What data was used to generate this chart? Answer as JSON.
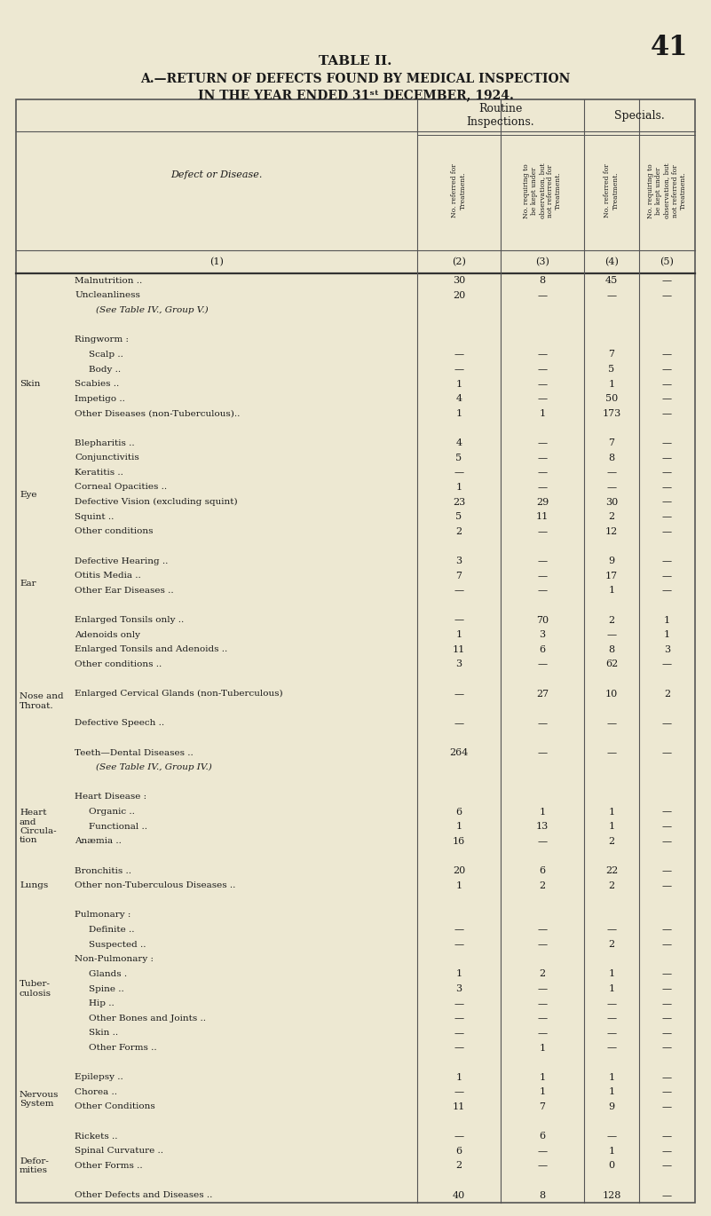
{
  "page_number": "41",
  "title1": "TABLE II.",
  "title2": "A.—RETURN OF DEFECTS FOUND BY MEDICAL INSPECTION",
  "title3": "IN THE YEAR ENDED 31ˢᵗ DECEMBER, 1924.",
  "bg_color": "#ede8d2",
  "col_header_top_left": "Routine\nInspections.",
  "col_header_top_right": "Specials.",
  "col_headers": [
    "No. referred for\nTreatment.",
    "No. requiring to\nbe kept under\nobservation, but\nnot referred for\nTreatment.",
    "No. referred for\nTreatment.",
    "No. requiring to\nbe kept under\nobservation, but\nnot referred for\nTreatment."
  ],
  "col_numbers": [
    "(2)",
    "(3)",
    "(4)",
    "(5)"
  ],
  "defect_label": "Defect or Disease.",
  "col1_num": "(1)",
  "rows": [
    {
      "cat": "",
      "label": "Malnutrition ..",
      "c2": "30",
      "c3": "8",
      "c4": "45",
      "c5": "—"
    },
    {
      "cat": "",
      "label": "Uncleanliness",
      "c2": "20",
      "c3": "—",
      "c4": "—",
      "c5": "—"
    },
    {
      "cat": "",
      "label": "(See Table IV., Group V.)",
      "c2": "",
      "c3": "",
      "c4": "",
      "c5": "",
      "it": true,
      "ind": 2
    },
    {
      "cat": "",
      "label": "",
      "c2": "",
      "c3": "",
      "c4": "",
      "c5": "",
      "gap": true
    },
    {
      "cat": "Skin",
      "label": "Ringworm :",
      "c2": "",
      "c3": "",
      "c4": "",
      "c5": ""
    },
    {
      "cat": "",
      "label": "Scalp ..",
      "c2": "—",
      "c3": "—",
      "c4": "7",
      "c5": "—",
      "ind": 1
    },
    {
      "cat": "",
      "label": "Body ..",
      "c2": "—",
      "c3": "—",
      "c4": "5",
      "c5": "—",
      "ind": 1
    },
    {
      "cat": "",
      "label": "Scabies ..",
      "c2": "1",
      "c3": "—",
      "c4": "1",
      "c5": "—"
    },
    {
      "cat": "",
      "label": "Impetigo ..",
      "c2": "4",
      "c3": "—",
      "c4": "50",
      "c5": "—"
    },
    {
      "cat": "",
      "label": "Other Diseases (non-Tuberculous)..",
      "c2": "1",
      "c3": "1",
      "c4": "173",
      "c5": "—"
    },
    {
      "cat": "",
      "label": "",
      "c2": "",
      "c3": "",
      "c4": "",
      "c5": "",
      "gap": true
    },
    {
      "cat": "Eye",
      "label": "Blepharitis ..",
      "c2": "4",
      "c3": "—",
      "c4": "7",
      "c5": "—"
    },
    {
      "cat": "",
      "label": "Conjunctivitis",
      "c2": "5",
      "c3": "—",
      "c4": "8",
      "c5": "—"
    },
    {
      "cat": "",
      "label": "Keratitis ..",
      "c2": "—",
      "c3": "—",
      "c4": "—",
      "c5": "—"
    },
    {
      "cat": "",
      "label": "Corneal Opacities ..",
      "c2": "1",
      "c3": "—",
      "c4": "—",
      "c5": "—"
    },
    {
      "cat": "",
      "label": "Defective Vision (excluding squint)",
      "c2": "23",
      "c3": "29",
      "c4": "30",
      "c5": "—"
    },
    {
      "cat": "",
      "label": "Squint ..",
      "c2": "5",
      "c3": "11",
      "c4": "2",
      "c5": "—"
    },
    {
      "cat": "",
      "label": "Other conditions",
      "c2": "2",
      "c3": "—",
      "c4": "12",
      "c5": "—"
    },
    {
      "cat": "",
      "label": "",
      "c2": "",
      "c3": "",
      "c4": "",
      "c5": "",
      "gap": true
    },
    {
      "cat": "Ear",
      "label": "Defective Hearing ..",
      "c2": "3",
      "c3": "—",
      "c4": "9",
      "c5": "—"
    },
    {
      "cat": "",
      "label": "Otitis Media ..",
      "c2": "7",
      "c3": "—",
      "c4": "17",
      "c5": "—"
    },
    {
      "cat": "",
      "label": "Other Ear Diseases ..",
      "c2": "—",
      "c3": "—",
      "c4": "1",
      "c5": "—"
    },
    {
      "cat": "",
      "label": "",
      "c2": "",
      "c3": "",
      "c4": "",
      "c5": "",
      "gap": true
    },
    {
      "cat": "Nose and\nThroat.",
      "label": "Enlarged Tonsils only ..",
      "c2": "—",
      "c3": "70",
      "c4": "2",
      "c5": "1"
    },
    {
      "cat": "",
      "label": "Adenoids only",
      "c2": "1",
      "c3": "3",
      "c4": "—",
      "c5": "1"
    },
    {
      "cat": "",
      "label": "Enlarged Tonsils and Adenoids ..",
      "c2": "11",
      "c3": "6",
      "c4": "8",
      "c5": "3"
    },
    {
      "cat": "",
      "label": "Other conditions ..",
      "c2": "3",
      "c3": "—",
      "c4": "62",
      "c5": "—"
    },
    {
      "cat": "",
      "label": "",
      "c2": "",
      "c3": "",
      "c4": "",
      "c5": "",
      "gap": true
    },
    {
      "cat": "",
      "label": "Enlarged Cervical Glands (non-Tuberculous)",
      "c2": "—",
      "c3": "27",
      "c4": "10",
      "c5": "2"
    },
    {
      "cat": "",
      "label": "",
      "c2": "",
      "c3": "",
      "c4": "",
      "c5": "",
      "gap": true
    },
    {
      "cat": "",
      "label": "Defective Speech ..",
      "c2": "—",
      "c3": "—",
      "c4": "—",
      "c5": "—"
    },
    {
      "cat": "",
      "label": "",
      "c2": "",
      "c3": "",
      "c4": "",
      "c5": "",
      "gap": true
    },
    {
      "cat": "",
      "label": "Teeth—Dental Diseases ..",
      "c2": "264",
      "c3": "—",
      "c4": "—",
      "c5": "—"
    },
    {
      "cat": "",
      "label": "(See Table IV., Group IV.)",
      "c2": "",
      "c3": "",
      "c4": "",
      "c5": "",
      "it": true,
      "ind": 2
    },
    {
      "cat": "",
      "label": "",
      "c2": "",
      "c3": "",
      "c4": "",
      "c5": "",
      "gap": true
    },
    {
      "cat": "Heart\nand\nCircula-\ntion",
      "label": "Heart Disease :",
      "c2": "",
      "c3": "",
      "c4": "",
      "c5": ""
    },
    {
      "cat": "",
      "label": "Organic ..",
      "c2": "6",
      "c3": "1",
      "c4": "1",
      "c5": "—",
      "ind": 1
    },
    {
      "cat": "",
      "label": "Functional ..",
      "c2": "1",
      "c3": "13",
      "c4": "1",
      "c5": "—",
      "ind": 1
    },
    {
      "cat": "",
      "label": "Anæmia ..",
      "c2": "16",
      "c3": "—",
      "c4": "2",
      "c5": "—"
    },
    {
      "cat": "",
      "label": "",
      "c2": "",
      "c3": "",
      "c4": "",
      "c5": "",
      "gap": true
    },
    {
      "cat": "Lungs",
      "label": "Bronchitis ..",
      "c2": "20",
      "c3": "6",
      "c4": "22",
      "c5": "—"
    },
    {
      "cat": "",
      "label": "Other non-Tuberculous Diseases ..",
      "c2": "1",
      "c3": "2",
      "c4": "2",
      "c5": "—"
    },
    {
      "cat": "",
      "label": "",
      "c2": "",
      "c3": "",
      "c4": "",
      "c5": "",
      "gap": true
    },
    {
      "cat": "Tuber-\nculosis",
      "label": "Pulmonary :",
      "c2": "",
      "c3": "",
      "c4": "",
      "c5": ""
    },
    {
      "cat": "",
      "label": "Definite ..",
      "c2": "—",
      "c3": "—",
      "c4": "—",
      "c5": "—",
      "ind": 1
    },
    {
      "cat": "",
      "label": "Suspected ..",
      "c2": "—",
      "c3": "—",
      "c4": "2",
      "c5": "—",
      "ind": 1
    },
    {
      "cat": "",
      "label": "Non-Pulmonary :",
      "c2": "",
      "c3": "",
      "c4": "",
      "c5": ""
    },
    {
      "cat": "",
      "label": "Glands .",
      "c2": "1",
      "c3": "2",
      "c4": "1",
      "c5": "—",
      "ind": 1
    },
    {
      "cat": "",
      "label": "Spine ..",
      "c2": "3",
      "c3": "—",
      "c4": "1",
      "c5": "—",
      "ind": 1
    },
    {
      "cat": "",
      "label": "Hip ..",
      "c2": "—",
      "c3": "—",
      "c4": "—",
      "c5": "—",
      "ind": 1
    },
    {
      "cat": "",
      "label": "Other Bones and Joints ..",
      "c2": "—",
      "c3": "—",
      "c4": "—",
      "c5": "—",
      "ind": 1
    },
    {
      "cat": "",
      "label": "Skin ..",
      "c2": "—",
      "c3": "—",
      "c4": "—",
      "c5": "—",
      "ind": 1
    },
    {
      "cat": "",
      "label": "Other Forms ..",
      "c2": "—",
      "c3": "1",
      "c4": "—",
      "c5": "—",
      "ind": 1
    },
    {
      "cat": "",
      "label": "",
      "c2": "",
      "c3": "",
      "c4": "",
      "c5": "",
      "gap": true
    },
    {
      "cat": "Nervous\nSystem",
      "label": "Epilepsy ..",
      "c2": "1",
      "c3": "1",
      "c4": "1",
      "c5": "—"
    },
    {
      "cat": "",
      "label": "Chorea ..",
      "c2": "—",
      "c3": "1",
      "c4": "1",
      "c5": "—"
    },
    {
      "cat": "",
      "label": "Other Conditions",
      "c2": "11",
      "c3": "7",
      "c4": "9",
      "c5": "—"
    },
    {
      "cat": "",
      "label": "",
      "c2": "",
      "c3": "",
      "c4": "",
      "c5": "",
      "gap": true
    },
    {
      "cat": "Defor-\nmities",
      "label": "Rickets ..",
      "c2": "—",
      "c3": "6",
      "c4": "—",
      "c5": "—"
    },
    {
      "cat": "",
      "label": "Spinal Curvature ..",
      "c2": "6",
      "c3": "—",
      "c4": "1",
      "c5": "—"
    },
    {
      "cat": "",
      "label": "Other Forms ..",
      "c2": "2",
      "c3": "—",
      "c4": "0",
      "c5": "—"
    },
    {
      "cat": "",
      "label": "",
      "c2": "",
      "c3": "",
      "c4": "",
      "c5": "",
      "gap": true
    },
    {
      "cat": "",
      "label": "Other Defects and Diseases ..",
      "c2": "40",
      "c3": "8",
      "c4": "128",
      "c5": "—"
    }
  ]
}
